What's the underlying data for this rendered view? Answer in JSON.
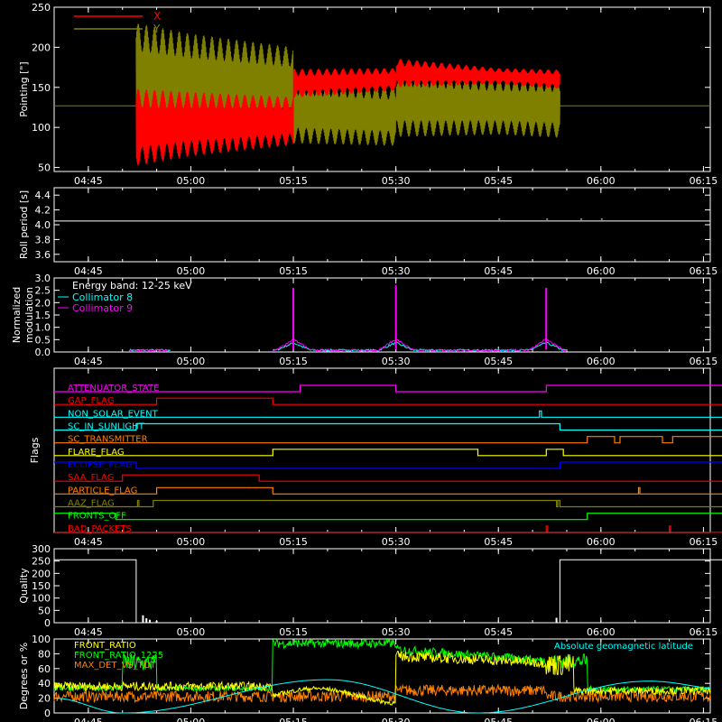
{
  "time_ticks": [
    "04:45",
    "05:00",
    "05:15",
    "05:30",
    "05:45",
    "06:00",
    "06:15"
  ],
  "chart_data": [
    {
      "id": "pointing",
      "type": "line",
      "ylabel": "Pointing [\"]",
      "ylim": [
        45,
        250
      ],
      "yticks": [
        50,
        100,
        150,
        200,
        250
      ],
      "legend": [
        "X",
        "Y"
      ],
      "colors": {
        "X": "#ff0000",
        "Y": "#808000"
      },
      "baseline": 127,
      "active_window": [
        "04:52",
        "05:54"
      ],
      "series": [
        {
          "name": "X",
          "x": [
            "04:52",
            "05:00",
            "05:15",
            "05:15",
            "05:30",
            "05:30",
            "05:45",
            "05:54"
          ],
          "center": [
            100,
            104,
            108,
            155,
            160,
            168,
            164,
            160
          ],
          "amplitude": [
            48,
            40,
            30,
            18,
            14,
            18,
            10,
            12
          ]
        },
        {
          "name": "Y",
          "x": [
            "04:52",
            "05:00",
            "05:15",
            "05:15",
            "05:30",
            "05:30",
            "05:45",
            "05:54"
          ],
          "center": [
            160,
            155,
            150,
            120,
            115,
            130,
            127,
            125
          ],
          "amplitude": [
            70,
            62,
            50,
            40,
            38,
            42,
            36,
            38
          ]
        }
      ]
    },
    {
      "id": "roll",
      "type": "line",
      "ylabel": "Roll period [s]",
      "ylim": [
        3.5,
        4.5
      ],
      "yticks": [
        3.6,
        3.8,
        4.0,
        4.2,
        4.4
      ],
      "series": [
        {
          "name": "",
          "value": 4.05
        }
      ]
    },
    {
      "id": "modulation",
      "type": "line",
      "ylabel": "Normalized modulation",
      "ylim": [
        0,
        3
      ],
      "yticks": [
        0.0,
        0.5,
        1.0,
        1.5,
        2.0,
        2.5,
        3.0
      ],
      "legend_title": "Energy band: 12-25 keV",
      "series": [
        {
          "name": "Collimator 8",
          "color": "#00ffff"
        },
        {
          "name": "Collimator 9",
          "color": "#ff00ff"
        }
      ],
      "segments": [
        [
          "04:51",
          "04:57"
        ],
        [
          "05:12",
          "05:55"
        ]
      ],
      "spikes": [
        {
          "x": "05:15",
          "y": 2.6
        },
        {
          "x": "05:30",
          "y": 2.7
        },
        {
          "x": "05:52",
          "y": 2.6
        }
      ],
      "noise_level": 0.08
    },
    {
      "id": "flags",
      "type": "line",
      "ylabel": "Flags",
      "rows": [
        {
          "name": "ATTENUATOR_STATE",
          "color": "#ff00ff",
          "steps": [
            [
              "04:40",
              0
            ],
            [
              "05:16",
              1
            ],
            [
              "05:30",
              0
            ],
            [
              "05:52",
              1
            ],
            [
              "06:20",
              1
            ]
          ]
        },
        {
          "name": "GAP_FLAG",
          "color": "#ff0000",
          "steps": [
            [
              "04:40",
              0
            ],
            [
              "04:55",
              1
            ],
            [
              "05:12",
              0
            ],
            [
              "06:20",
              0
            ]
          ]
        },
        {
          "name": "NON_SOLAR_EVENT",
          "color": "#00ffff",
          "steps": [
            [
              "04:40",
              0
            ],
            [
              "05:51",
              1
            ],
            [
              "05:51.3",
              0
            ],
            [
              "06:20",
              0
            ]
          ]
        },
        {
          "name": "SC_IN_SUNLIGHT",
          "color": "#00ffff",
          "steps": [
            [
              "04:40",
              0
            ],
            [
              "04:52",
              1
            ],
            [
              "05:54",
              0
            ],
            [
              "06:20",
              0
            ]
          ]
        },
        {
          "name": "SC_TRANSMITTER",
          "color": "#ff7f00",
          "steps": [
            [
              "04:40",
              0
            ],
            [
              "05:58",
              1
            ],
            [
              "06:02",
              0
            ],
            [
              "06:02.8",
              1
            ],
            [
              "06:09",
              0
            ],
            [
              "06:10.5",
              1
            ],
            [
              "06:20",
              1
            ]
          ]
        },
        {
          "name": "FLARE_FLAG",
          "color": "#ffff00",
          "steps": [
            [
              "04:40",
              0
            ],
            [
              "05:12",
              1
            ],
            [
              "05:42",
              0
            ],
            [
              "05:52",
              1
            ],
            [
              "05:54.5",
              0
            ],
            [
              "06:20",
              0
            ]
          ]
        },
        {
          "name": "ECLIPSE_FLAG",
          "color": "#0000ff",
          "steps": [
            [
              "04:40",
              1
            ],
            [
              "04:52",
              0
            ],
            [
              "05:54",
              1
            ],
            [
              "06:20",
              1
            ]
          ]
        },
        {
          "name": "SAA_FLAG",
          "color": "#ff0000",
          "steps": [
            [
              "04:40",
              0
            ],
            [
              "04:50",
              1
            ],
            [
              "05:10",
              0
            ],
            [
              "06:20",
              0
            ]
          ]
        },
        {
          "name": "PARTICLE_FLAG",
          "color": "#ff7f00",
          "steps": [
            [
              "04:40",
              0
            ],
            [
              "04:55",
              1
            ],
            [
              "05:12",
              0
            ],
            [
              "06:05.5",
              1
            ],
            [
              "06:05.7",
              0
            ],
            [
              "06:20",
              0
            ]
          ]
        },
        {
          "name": "AAZ_FLAG",
          "color": "#808000",
          "steps": [
            [
              "04:40",
              0
            ],
            [
              "04:52.2",
              1
            ],
            [
              "04:52.4",
              0
            ],
            [
              "04:54.5",
              1
            ],
            [
              "05:53.5",
              0
            ],
            [
              "05:53.7",
              1
            ],
            [
              "05:54",
              0
            ],
            [
              "06:20",
              0
            ]
          ]
        },
        {
          "name": "FRONTS_OFF",
          "color": "#00ff00",
          "steps": [
            [
              "04:40",
              1
            ],
            [
              "04:49",
              0
            ],
            [
              "05:58",
              1
            ],
            [
              "06:20",
              1
            ]
          ]
        },
        {
          "name": "BAD_PACKETS",
          "color": "#ff0000",
          "steps": [
            [
              "04:40",
              0
            ],
            [
              "05:52",
              1
            ],
            [
              "05:52.2",
              0
            ],
            [
              "06:10",
              1
            ],
            [
              "06:10.2",
              0
            ],
            [
              "06:20",
              0
            ]
          ]
        }
      ]
    },
    {
      "id": "quality",
      "type": "line",
      "ylabel": "Quality",
      "ylim": [
        0,
        300
      ],
      "yticks": [
        0,
        50,
        100,
        150,
        200,
        250,
        300
      ],
      "series": [
        {
          "name": "",
          "x": [
            "04:40",
            "04:52",
            "04:52",
            "05:54",
            "05:54",
            "06:20"
          ],
          "y": [
            255,
            255,
            0,
            0,
            255,
            255
          ]
        }
      ]
    },
    {
      "id": "ratios",
      "type": "line",
      "ylabel": "Degrees or %",
      "ylim": [
        0,
        100
      ],
      "yticks": [
        0,
        20,
        40,
        60,
        80,
        100
      ],
      "series": [
        {
          "name": "FRONT_RATIO",
          "color": "#ffff00"
        },
        {
          "name": "FRONT_RATIO_1225",
          "color": "#00ff00"
        },
        {
          "name": "MAX_DET_VS_TOT",
          "color": "#ff7f00"
        },
        {
          "name": "Absolute geomagnetic latitude",
          "color": "#00ffff",
          "x": [
            "04:40",
            "04:50",
            "05:20",
            "05:42",
            "06:07",
            "06:20"
          ],
          "y": [
            20,
            0,
            45,
            0,
            43,
            30
          ]
        }
      ]
    }
  ]
}
